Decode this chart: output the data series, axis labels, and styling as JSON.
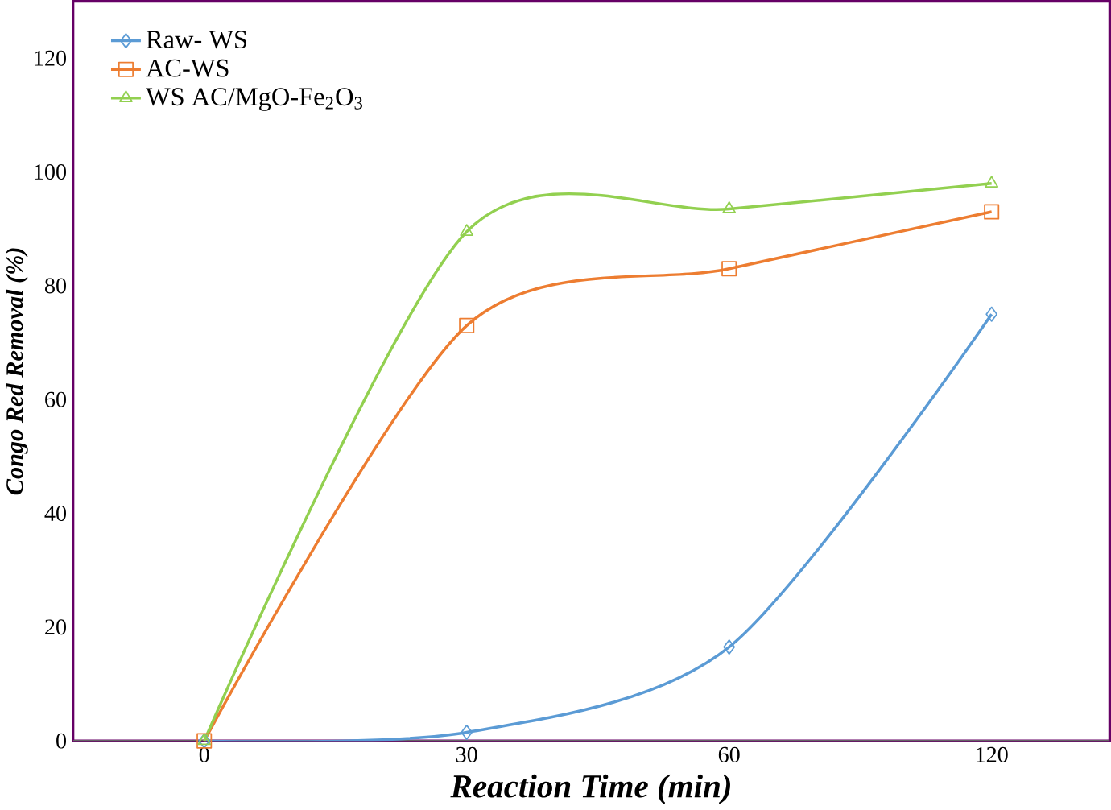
{
  "chart_data": {
    "type": "line",
    "xlabel": "Reaction Time (min)",
    "ylabel": "Congo Red Removal (%)",
    "categories": [
      "0",
      "30",
      "60",
      "120"
    ],
    "ylim": [
      0,
      130
    ],
    "yticks": [
      0,
      20,
      40,
      60,
      80,
      100,
      120
    ],
    "legend": "top left",
    "grid": false,
    "series": [
      {
        "name": "Raw- WS",
        "color": "#5b9bd5",
        "marker": "diamond",
        "values": [
          0,
          1.5,
          16.5,
          75
        ]
      },
      {
        "name": "AC-WS",
        "color": "#ed7d31",
        "marker": "square",
        "values": [
          0,
          73,
          83,
          93
        ]
      },
      {
        "name": "WS AC/MgO-Fe$_{2}$O$_{3}$",
        "color": "#92d050",
        "marker": "triangle",
        "values": [
          0,
          89.5,
          93.5,
          98
        ]
      }
    ]
  }
}
